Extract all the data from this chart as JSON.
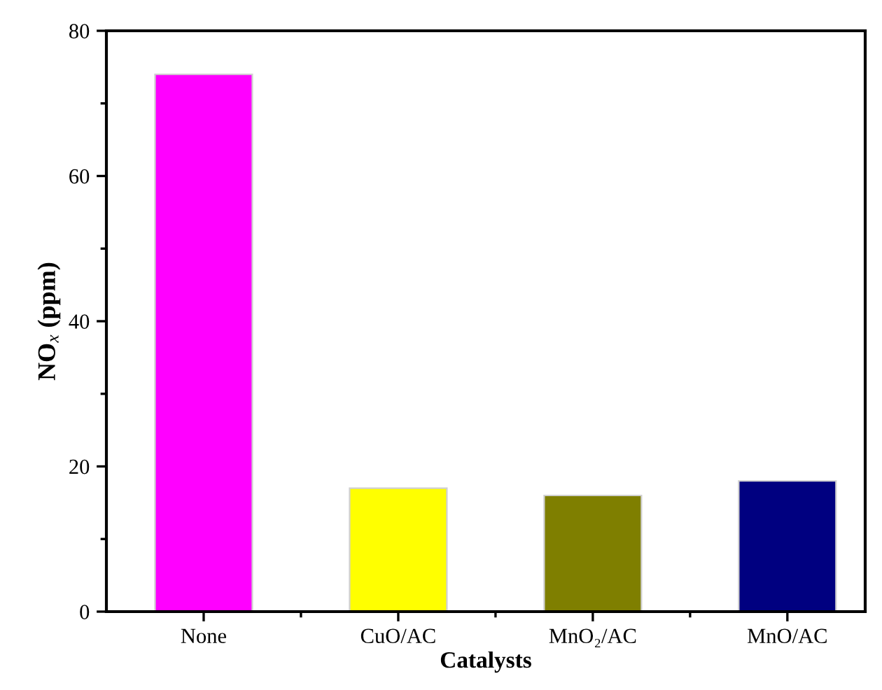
{
  "chart_data": {
    "type": "bar",
    "xlabel": "Catalysts",
    "ylabel": "NO$_{x}$ (ppm)",
    "categories": [
      "None",
      "CuO/AC",
      "MnO₂/AC",
      "MnO/AC"
    ],
    "values": [
      74,
      17,
      16,
      18
    ],
    "colors": [
      "#ff00ff",
      "#ffff00",
      "#7f7f00",
      "#000080"
    ],
    "ylim": [
      0,
      80
    ],
    "yticks": [
      0,
      20,
      40,
      60,
      80
    ],
    "grid": false,
    "legend": false
  }
}
